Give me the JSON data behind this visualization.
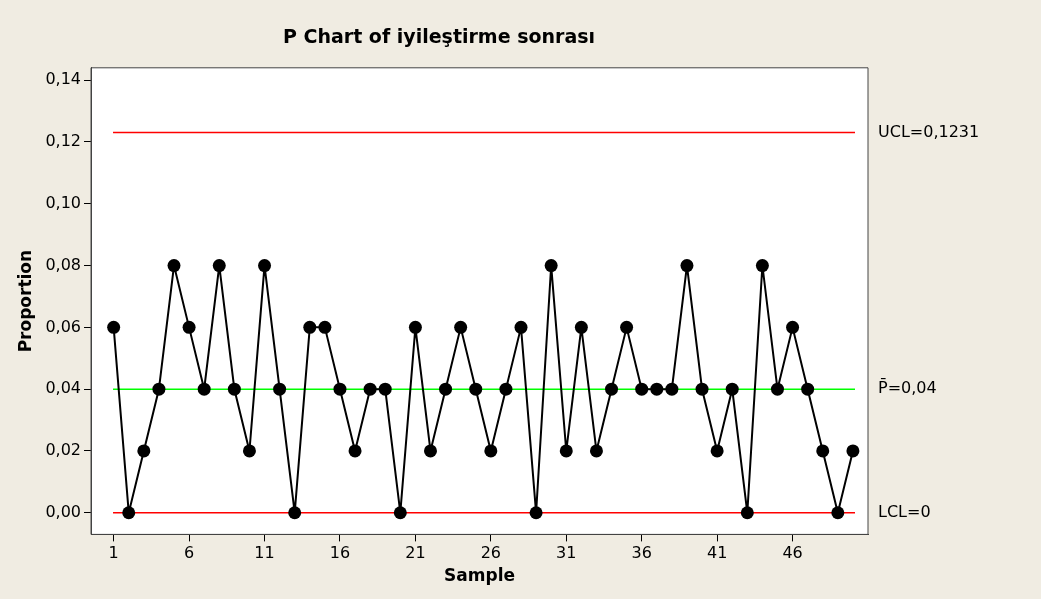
{
  "chart_data": {
    "type": "line",
    "title": "P Chart of iyileştirme sonrası",
    "xlabel": "Sample",
    "ylabel": "Proportion",
    "x": [
      1,
      2,
      3,
      4,
      5,
      6,
      7,
      8,
      9,
      10,
      11,
      12,
      13,
      14,
      15,
      16,
      17,
      18,
      19,
      20,
      21,
      22,
      23,
      24,
      25,
      26,
      27,
      28,
      29,
      30,
      31,
      32,
      33,
      34,
      35,
      36,
      37,
      38,
      39,
      40,
      41,
      42,
      43,
      44,
      45,
      46,
      47,
      48,
      49,
      50
    ],
    "series": [
      {
        "color": "#000000",
        "values": [
          0.06,
          0,
          0.02,
          0.04,
          0.08,
          0.06,
          0.04,
          0.08,
          0.04,
          0.02,
          0.08,
          0.04,
          0,
          0.06,
          0.06,
          0.04,
          0.02,
          0.04,
          0.04,
          0,
          0.06,
          0.02,
          0.04,
          0.06,
          0.04,
          0.02,
          0.04,
          0.06,
          0,
          0.08,
          0.02,
          0.06,
          0.02,
          0.04,
          0.06,
          0.04,
          0.04,
          0.04,
          0.08,
          0.04,
          0.02,
          0.04,
          0,
          0.08,
          0.04,
          0.06,
          0.04,
          0.02,
          0,
          0.02
        ]
      }
    ],
    "xlim": [
      -0.5,
      51
    ],
    "xticks": [
      1,
      6,
      11,
      16,
      21,
      26,
      31,
      36,
      41,
      46
    ],
    "ylim": [
      -0.007,
      0.144
    ],
    "yticks": [
      {
        "value": 0,
        "label": "0,00"
      },
      {
        "value": 0.02,
        "label": "0,02"
      },
      {
        "value": 0.04,
        "label": "0,04"
      },
      {
        "value": 0.06,
        "label": "0,06"
      },
      {
        "value": 0.08,
        "label": "0,08"
      },
      {
        "value": 0.1,
        "label": "0,10"
      },
      {
        "value": 0.12,
        "label": "0,12"
      },
      {
        "value": 0.14,
        "label": "0,14"
      }
    ],
    "ref_lines": [
      {
        "axis": "y",
        "value": 0.1231,
        "label": "UCL=0,1231",
        "color": "#ff0000"
      },
      {
        "axis": "y",
        "value": 0.04,
        "label": "P̄=0,04",
        "color": "#00ff00"
      },
      {
        "axis": "y",
        "value": 0,
        "label": "LCL=0",
        "color": "#ff0000"
      }
    ],
    "grid": false,
    "legend": false,
    "marker": "circle",
    "line_style": "solid"
  }
}
